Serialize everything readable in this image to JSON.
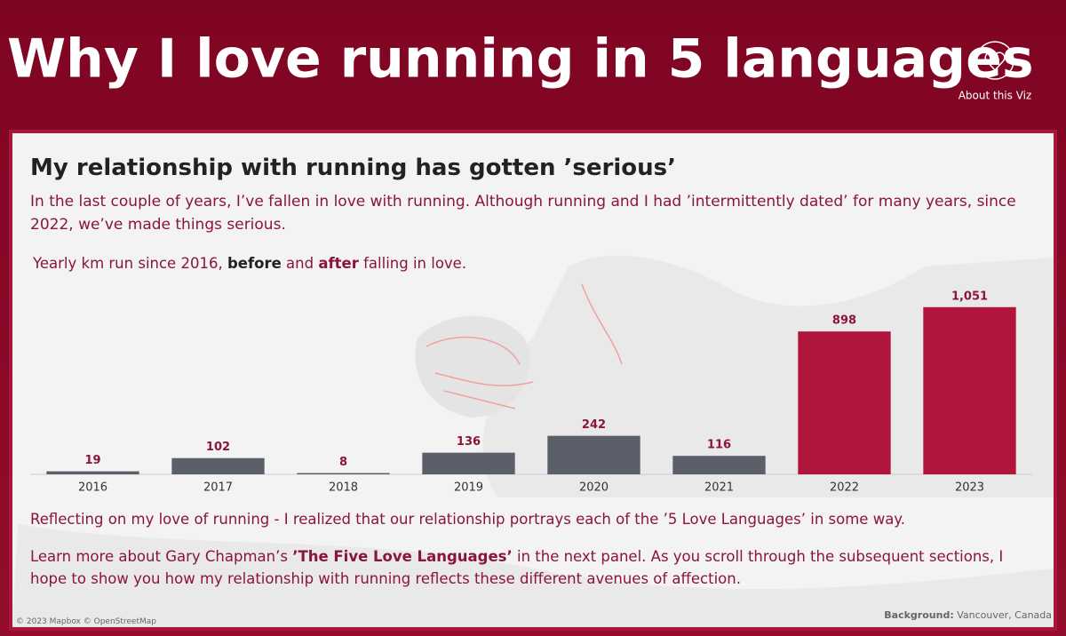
{
  "header": {
    "title": "Why I love running in 5 languages",
    "about_label": "About this Viz"
  },
  "panel": {
    "heading": "My relationship with running has gotten ’serious’",
    "intro": "In the last couple of years, I’ve fallen in love with running. Although running and I had ’intermittently dated’ for many years, since 2022, we’ve made things serious.",
    "subtitle": [
      "Yearly km run since 2016, ",
      "before",
      " and ",
      "after",
      " falling in love."
    ],
    "reflection": "Reflecting on my love of running - I realized that our relationship portrays each of the ’5 Love Languages’ in some way.",
    "learn_more": [
      "Learn more about Gary Chapman’s ",
      "’The Five Love Languages’",
      " in the next panel. As you scroll through the subsequent sections, I hope to show you how my relationship with running reflects these different avenues of affection."
    ],
    "map_credit": "© 2023 Mapbox © OpenStreetMap",
    "background_note": [
      "Background:",
      " Vancouver, Canada"
    ]
  },
  "chart_data": {
    "type": "bar",
    "categories": [
      "2016",
      "2017",
      "2018",
      "2019",
      "2020",
      "2021",
      "2022",
      "2023"
    ],
    "values": [
      19,
      102,
      8,
      136,
      242,
      116,
      898,
      1051
    ],
    "value_labels": [
      "19",
      "102",
      "8",
      "136",
      "242",
      "116",
      "898",
      "1,051"
    ],
    "colors": [
      "#5b5f69",
      "#5b5f69",
      "#5b5f69",
      "#5b5f69",
      "#5b5f69",
      "#5b5f69",
      "#b0163c",
      "#b0163c"
    ],
    "label_color": "#8b1538",
    "ylim": [
      0,
      1100
    ]
  }
}
